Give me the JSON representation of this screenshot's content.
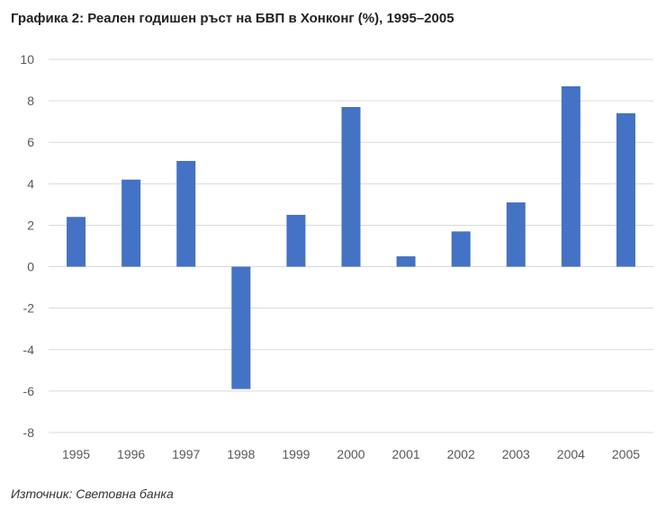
{
  "chart_data": {
    "type": "bar",
    "title": "Графика 2: Реален годишен ръст на БВП в Хонконг (%), 1995–2005",
    "source": "Източник: Световна банка",
    "categories": [
      "1995",
      "1996",
      "1997",
      "1998",
      "1999",
      "2000",
      "2001",
      "2002",
      "2003",
      "2004",
      "2005"
    ],
    "values": [
      2.4,
      4.2,
      5.1,
      -5.9,
      2.5,
      7.7,
      0.5,
      1.7,
      3.1,
      8.7,
      7.4
    ],
    "ylim": [
      -8,
      10
    ],
    "yticks": [
      10,
      8,
      6,
      4,
      2,
      0,
      -2,
      -4,
      -6,
      -8
    ],
    "xlabel": "",
    "ylabel": "",
    "grid": true,
    "legend": "none",
    "bar_color": "#4472C4"
  }
}
